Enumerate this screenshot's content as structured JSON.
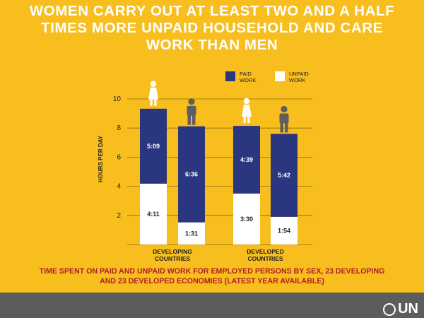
{
  "title_lines": [
    "WOMEN CARRY OUT AT LEAST TWO AND A HALF",
    "TIMES MORE UNPAID HOUSEHOLD AND CARE",
    "WORK THAN MEN"
  ],
  "caption_lines": [
    "TIME SPENT ON PAID AND UNPAID WORK FOR EMPLOYED PERSONS BY SEX, 23 DEVELOPING",
    "AND 23 DEVELOPED ECONOMIES (LATEST YEAR AVAILABLE)"
  ],
  "logo_text": "UN",
  "colors": {
    "background": "#F7BE1E",
    "paid": "#2A3680",
    "unpaid": "#FFFFFF",
    "footer": "#5C5C5C",
    "caption": "#B01E28",
    "man_icon": "#5E5E5E",
    "woman_icon": "#FFFFFF"
  },
  "chart_data": {
    "type": "stacked-bar",
    "ylabel": "HOURS PER DAY",
    "ylim": [
      0,
      10
    ],
    "yticks": [
      2,
      4,
      6,
      8,
      10
    ],
    "grid": true,
    "legend": {
      "position": "top-right",
      "items": [
        {
          "key": "paid",
          "line1": "PAID",
          "line2": "WORK"
        },
        {
          "key": "unpaid",
          "line1": "UNPAID",
          "line2": "WORK"
        }
      ]
    },
    "groups": [
      {
        "label_line1": "DEVELOPING",
        "label_line2": "COUNTRIES",
        "bars": [
          {
            "sex": "women",
            "icon": "woman-icon",
            "unpaid": 4.18,
            "unpaid_label": "4:11",
            "paid": 5.15,
            "paid_label": "5:09"
          },
          {
            "sex": "men",
            "icon": "man-icon",
            "unpaid": 1.52,
            "unpaid_label": "1:31",
            "paid": 6.6,
            "paid_label": "6:36"
          }
        ]
      },
      {
        "label_line1": "DEVELOPED",
        "label_line2": "COUNTRIES",
        "bars": [
          {
            "sex": "women",
            "icon": "woman-icon",
            "unpaid": 3.5,
            "unpaid_label": "3:30",
            "paid": 4.65,
            "paid_label": "4:39"
          },
          {
            "sex": "men",
            "icon": "man-icon",
            "unpaid": 1.9,
            "unpaid_label": "1:54",
            "paid": 5.7,
            "paid_label": "5:42"
          }
        ]
      }
    ]
  }
}
